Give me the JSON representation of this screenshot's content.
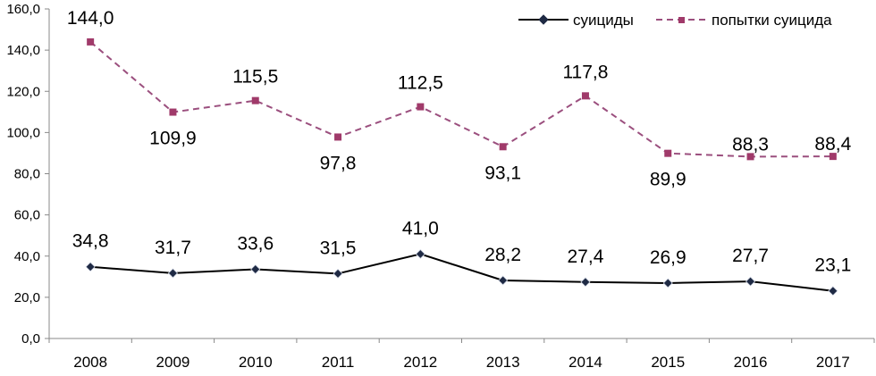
{
  "chart_data": {
    "type": "line",
    "title": "",
    "xlabel": "",
    "ylabel": "",
    "categories": [
      "2008",
      "2009",
      "2010",
      "2011",
      "2012",
      "2013",
      "2014",
      "2015",
      "2016",
      "2017"
    ],
    "ylim": [
      0,
      160
    ],
    "ytick_labels": [
      "0,0",
      "20,0",
      "40,0",
      "60,0",
      "80,0",
      "100,0",
      "120,0",
      "140,0",
      "160,0"
    ],
    "grid": false,
    "legend_position": "top-right",
    "series": [
      {
        "name": "суициды",
        "color": "#000000",
        "marker": "diamond",
        "style": "solid",
        "values": [
          34.8,
          31.7,
          33.6,
          31.5,
          41.0,
          28.2,
          27.4,
          26.9,
          27.7,
          23.1
        ],
        "labels": [
          "34,8",
          "31,7",
          "33,6",
          "31,5",
          "41,0",
          "28,2",
          "27,4",
          "26,9",
          "27,7",
          "23,1"
        ]
      },
      {
        "name": "попытки суицида",
        "color": "#9b4f7e",
        "marker": "square",
        "style": "dashed",
        "values": [
          144.0,
          109.9,
          115.5,
          97.8,
          112.5,
          93.1,
          117.8,
          89.9,
          88.3,
          88.4
        ],
        "labels": [
          "144,0",
          "109,9",
          "115,5",
          "97,8",
          "112,5",
          "93,1",
          "117,8",
          "89,9",
          "88,3",
          "88,4"
        ]
      }
    ]
  }
}
